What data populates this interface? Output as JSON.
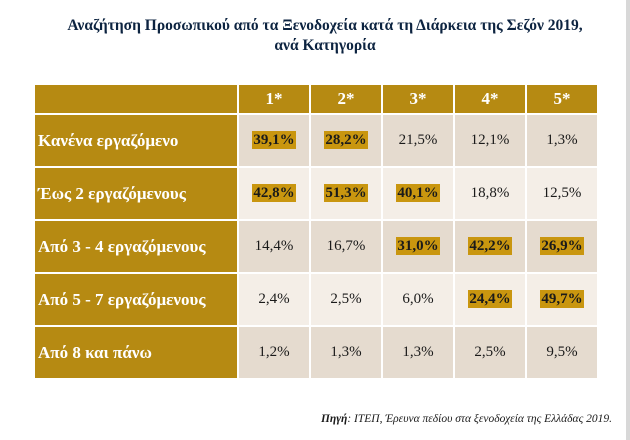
{
  "title": {
    "line1": "Αναζήτηση Προσωπικού από τα Ξενοδοχεία κατά τη Διάρκεια της Σεζόν 2019,",
    "line2": "ανά Κατηγορία"
  },
  "table": {
    "columns": [
      "1*",
      "2*",
      "3*",
      "4*",
      "5*"
    ],
    "rows": [
      {
        "label": "Κανένα εργαζόμενο",
        "cells": [
          {
            "value": "39,1%",
            "highlight": true
          },
          {
            "value": "28,2%",
            "highlight": true
          },
          {
            "value": "21,5%",
            "highlight": false
          },
          {
            "value": "12,1%",
            "highlight": false
          },
          {
            "value": "1,3%",
            "highlight": false
          }
        ]
      },
      {
        "label": "Έως 2 εργαζόμενους",
        "cells": [
          {
            "value": "42,8%",
            "highlight": true
          },
          {
            "value": "51,3%",
            "highlight": true
          },
          {
            "value": "40,1%",
            "highlight": true
          },
          {
            "value": "18,8%",
            "highlight": false
          },
          {
            "value": "12,5%",
            "highlight": false
          }
        ]
      },
      {
        "label": "Από 3 - 4 εργαζόμενους",
        "cells": [
          {
            "value": "14,4%",
            "highlight": false
          },
          {
            "value": "16,7%",
            "highlight": false
          },
          {
            "value": "31,0%",
            "highlight": true
          },
          {
            "value": "42,2%",
            "highlight": true
          },
          {
            "value": "26,9%",
            "highlight": true
          }
        ]
      },
      {
        "label": "Από 5 - 7 εργαζόμενους",
        "cells": [
          {
            "value": "2,4%",
            "highlight": false
          },
          {
            "value": "2,5%",
            "highlight": false
          },
          {
            "value": "6,0%",
            "highlight": false
          },
          {
            "value": "24,4%",
            "highlight": true
          },
          {
            "value": "49,7%",
            "highlight": true
          }
        ]
      },
      {
        "label": "Από 8 και πάνω",
        "cells": [
          {
            "value": "1,2%",
            "highlight": false
          },
          {
            "value": "1,3%",
            "highlight": false
          },
          {
            "value": "1,3%",
            "highlight": false
          },
          {
            "value": "2,5%",
            "highlight": false
          },
          {
            "value": "9,5%",
            "highlight": false
          }
        ]
      }
    ]
  },
  "source": {
    "label": "Πηγή",
    "text": ": ΙΤΕΠ, Έρευνα πεδίου στα ξενοδοχεία της Ελλάδας 2019."
  },
  "colors": {
    "header_gold": "#b68a12",
    "highlight_gold": "#c9960f",
    "title_navy": "#0c2340",
    "row_odd": "#e5dbcf",
    "row_even": "#f4eee7"
  }
}
